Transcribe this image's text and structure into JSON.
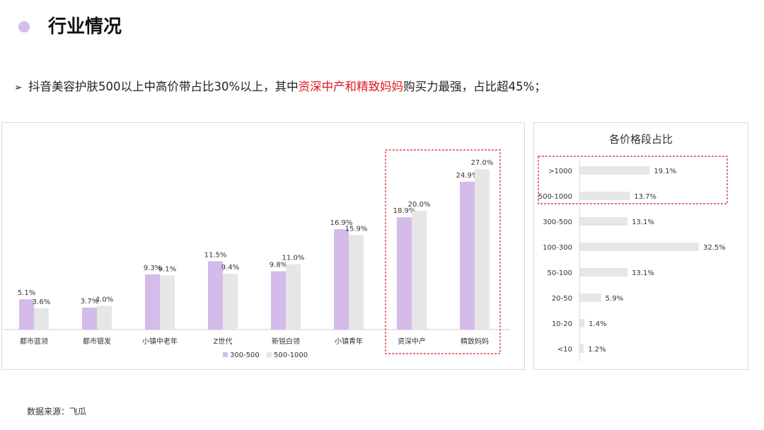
{
  "header": {
    "title": "行业情况"
  },
  "summary": {
    "bullet": "➢",
    "text_before": "抖音美容护肤500以上中高价带占比30%以上，其中",
    "text_highlight": "资深中产和精致妈妈",
    "text_after": "购买力最强，占比超45%；"
  },
  "colors": {
    "purple": "#d4bbe9",
    "gray": "#e6e6e6",
    "highlight_red": "#e0181f",
    "dashed_box": "#d9232a"
  },
  "chart_data": [
    {
      "type": "bar",
      "title": "",
      "categories": [
        "都市蓝领",
        "都市银发",
        "小镇中老年",
        "Z世代",
        "新锐白领",
        "小镇青年",
        "资深中产",
        "精致妈妈"
      ],
      "series": [
        {
          "name": "300-500",
          "values": [
            5.1,
            3.7,
            9.3,
            11.5,
            9.8,
            16.9,
            18.9,
            24.9
          ],
          "labels": [
            "5.1%",
            "3.7%",
            "9.3%",
            "11.5%",
            "9.8%",
            "16.9%",
            "18.9%",
            "24.9%"
          ]
        },
        {
          "name": "500-1000",
          "values": [
            3.6,
            4.0,
            9.1,
            9.4,
            11.0,
            15.9,
            20.0,
            27.0
          ],
          "labels": [
            "3.6%",
            "4.0%",
            "9.1%",
            "9.4%",
            "11.0%",
            "15.9%",
            "20.0%",
            "27.0%"
          ]
        }
      ],
      "ylim": [
        0,
        30
      ],
      "grid": false,
      "legend": "bottom",
      "highlight_categories": [
        "资深中产",
        "精致妈妈"
      ]
    },
    {
      "type": "bar",
      "orientation": "horizontal",
      "title": "各价格段占比",
      "categories": [
        ">1000",
        "500-1000",
        "300-500",
        "100-300",
        "50-100",
        "20-50",
        "10-20",
        "<10"
      ],
      "values": [
        19.1,
        13.7,
        13.1,
        32.5,
        13.1,
        5.9,
        1.4,
        1.2
      ],
      "labels": [
        "19.1%",
        "13.7%",
        "13.1%",
        "32.5%",
        "13.1%",
        "5.9%",
        "1.4%",
        "1.2%"
      ],
      "xlim": [
        0,
        35
      ],
      "grid": false,
      "highlight_categories": [
        ">1000",
        "500-1000"
      ]
    }
  ],
  "footer": {
    "source": "数据来源：飞瓜"
  }
}
